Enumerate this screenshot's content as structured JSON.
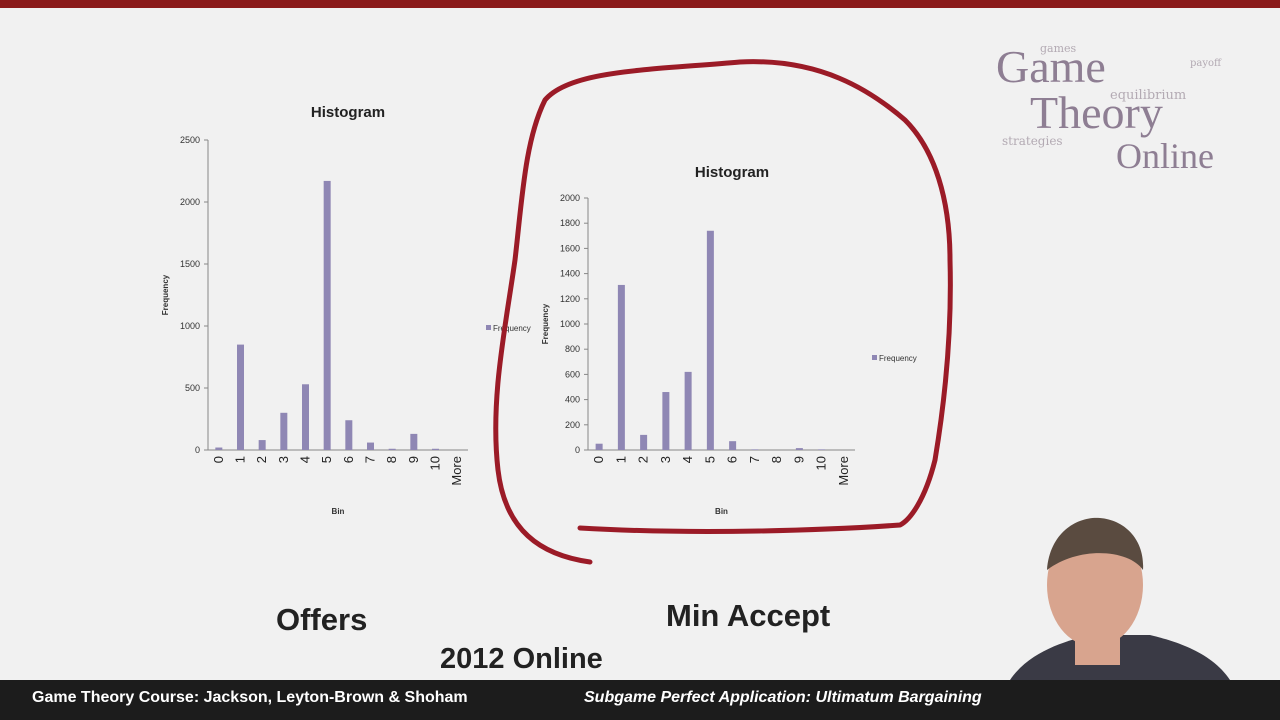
{
  "logo": {
    "line1": "Game",
    "line2": "Theory",
    "line3": "Online",
    "wordcloud": [
      "equilibrium",
      "strategies",
      "payoff",
      "games"
    ]
  },
  "chart_data": [
    {
      "type": "bar",
      "title": "Histogram",
      "xlabel": "Bin",
      "ylabel": "Frequency",
      "categories": [
        "0",
        "1",
        "2",
        "3",
        "4",
        "5",
        "6",
        "7",
        "8",
        "9",
        "10",
        "More"
      ],
      "series": [
        {
          "name": "Frequency",
          "values": [
            20,
            850,
            80,
            300,
            530,
            2170,
            240,
            60,
            10,
            130,
            10,
            0
          ]
        }
      ],
      "ylim": [
        0,
        2500
      ],
      "yticks": [
        0,
        500,
        1000,
        1500,
        2000,
        2500
      ],
      "legend": "right",
      "color": "#8f87b4"
    },
    {
      "type": "bar",
      "title": "Histogram",
      "xlabel": "Bin",
      "ylabel": "Frequency",
      "categories": [
        "0",
        "1",
        "2",
        "3",
        "4",
        "5",
        "6",
        "7",
        "8",
        "9",
        "10",
        "More"
      ],
      "series": [
        {
          "name": "Frequency",
          "values": [
            50,
            1310,
            120,
            460,
            620,
            1740,
            70,
            5,
            0,
            15,
            5,
            0
          ]
        }
      ],
      "ylim": [
        0,
        2000
      ],
      "yticks": [
        0,
        200,
        400,
        600,
        800,
        1000,
        1200,
        1400,
        1600,
        1800,
        2000
      ],
      "legend": "right",
      "color": "#8f87b4"
    }
  ],
  "captions": {
    "offers": "Offers",
    "min_accept": "Min Accept",
    "year": "2012 Online"
  },
  "footer": {
    "left": "Game Theory Course: Jackson, Leyton-Brown & Shoham",
    "right": "Subgame Perfect Application: Ultimatum Bargaining"
  },
  "colors": {
    "annotation": "#9b1b27",
    "footer_bg": "#1c1c1c",
    "bar": "#8f87b4",
    "top_bar": "#8b1a1a"
  }
}
